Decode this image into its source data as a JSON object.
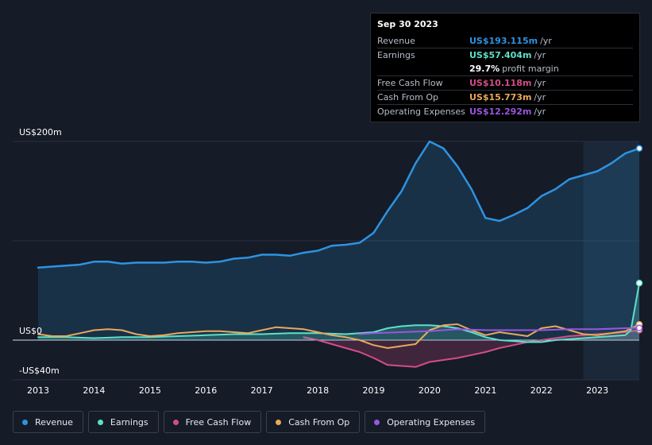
{
  "chart_data": {
    "type": "area",
    "currency_note": "US$ millions",
    "ylim": [
      -40,
      200
    ],
    "y_tick_labels": [
      "US$200m",
      "US$0",
      "-US$40m"
    ],
    "x_tick_labels": [
      "2013",
      "2014",
      "2015",
      "2016",
      "2017",
      "2018",
      "2019",
      "2020",
      "2021",
      "2022",
      "2023"
    ],
    "x_range": [
      2013,
      2023.75
    ],
    "forecast_shade_start": 2022.75,
    "series": [
      {
        "name": "Revenue",
        "color": "#2e93e0",
        "fill": true,
        "x": [
          2013.0,
          2013.5,
          2013.75,
          2014.0,
          2014.25,
          2014.5,
          2014.75,
          2015.0,
          2015.25,
          2015.5,
          2015.75,
          2016.0,
          2016.25,
          2016.5,
          2016.75,
          2017.0,
          2017.25,
          2017.5,
          2017.75,
          2018.0,
          2018.25,
          2018.5,
          2018.75,
          2019.0,
          2019.25,
          2019.5,
          2019.75,
          2020.0,
          2020.25,
          2020.5,
          2020.75,
          2021.0,
          2021.25,
          2021.5,
          2021.75,
          2022.0,
          2022.25,
          2022.5,
          2022.75,
          2023.0,
          2023.25,
          2023.5,
          2023.75
        ],
        "values": [
          73,
          75,
          76,
          79,
          79,
          77,
          78,
          78,
          78,
          79,
          79,
          78,
          79,
          82,
          83,
          86,
          86,
          85,
          88,
          90,
          95,
          96,
          98,
          108,
          130,
          150,
          178,
          200,
          193,
          175,
          152,
          123,
          120,
          126,
          133,
          145,
          152,
          162,
          166,
          170,
          178,
          188,
          193
        ]
      },
      {
        "name": "Earnings",
        "color": "#5de0c9",
        "fill": true,
        "x": [
          2013.0,
          2013.5,
          2014.0,
          2014.5,
          2015.0,
          2015.5,
          2016.0,
          2016.5,
          2017.0,
          2017.5,
          2018.0,
          2018.5,
          2019.0,
          2019.25,
          2019.5,
          2019.75,
          2020.0,
          2020.25,
          2020.5,
          2020.75,
          2021.0,
          2021.25,
          2021.5,
          2021.75,
          2022.0,
          2022.25,
          2022.5,
          2022.75,
          2023.0,
          2023.25,
          2023.5,
          2023.6,
          2023.75
        ],
        "values": [
          3,
          3,
          2,
          3,
          3,
          4,
          5,
          6,
          6,
          7,
          7,
          6,
          8,
          12,
          14,
          15,
          15,
          14,
          12,
          8,
          3,
          0,
          -1,
          -2,
          -2,
          0,
          1,
          2,
          3,
          4,
          5,
          10,
          57.4
        ]
      },
      {
        "name": "Free Cash Flow",
        "color": "#d44d87",
        "fill": true,
        "x": [
          2017.75,
          2018.0,
          2018.25,
          2018.5,
          2018.75,
          2019.0,
          2019.25,
          2019.5,
          2019.75,
          2020.0,
          2020.25,
          2020.5,
          2020.75,
          2021.0,
          2021.25,
          2021.5,
          2021.75,
          2022.0,
          2022.25,
          2022.5,
          2022.75,
          2023.0,
          2023.25,
          2023.5,
          2023.75
        ],
        "values": [
          3,
          0,
          -4,
          -8,
          -12,
          -18,
          -25,
          -26,
          -27,
          -22,
          -20,
          -18,
          -15,
          -12,
          -8,
          -5,
          -2,
          0,
          2,
          4,
          5,
          6,
          7,
          8,
          10.1
        ]
      },
      {
        "name": "Cash From Op",
        "color": "#e8a95b",
        "fill": false,
        "x": [
          2013.0,
          2013.25,
          2013.5,
          2013.75,
          2014.0,
          2014.25,
          2014.5,
          2014.75,
          2015.0,
          2015.25,
          2015.5,
          2015.75,
          2016.0,
          2016.25,
          2016.5,
          2016.75,
          2017.0,
          2017.25,
          2017.5,
          2017.75,
          2018.0,
          2018.25,
          2018.5,
          2018.75,
          2019.0,
          2019.25,
          2019.5,
          2019.75,
          2020.0,
          2020.25,
          2020.5,
          2020.75,
          2021.0,
          2021.25,
          2021.5,
          2021.75,
          2022.0,
          2022.25,
          2022.5,
          2022.75,
          2023.0,
          2023.25,
          2023.5,
          2023.75
        ],
        "values": [
          6,
          4,
          4,
          7,
          10,
          11,
          10,
          6,
          4,
          5,
          7,
          8,
          9,
          9,
          8,
          7,
          10,
          13,
          12,
          11,
          8,
          5,
          3,
          0,
          -5,
          -8,
          -6,
          -4,
          10,
          15,
          16,
          10,
          5,
          8,
          6,
          4,
          12,
          14,
          10,
          6,
          5,
          7,
          9,
          15.8
        ]
      },
      {
        "name": "Operating Expenses",
        "color": "#9b55e0",
        "fill": false,
        "x": [
          2018.75,
          2019.0,
          2019.5,
          2020.0,
          2020.5,
          2021.0,
          2021.5,
          2022.0,
          2022.5,
          2023.0,
          2023.5,
          2023.75
        ],
        "values": [
          6,
          7,
          8,
          9,
          11,
          10,
          10,
          10,
          11,
          11,
          12,
          12.3
        ]
      }
    ]
  },
  "tooltip": {
    "date": "Sep 30 2023",
    "rows": [
      {
        "label": "Revenue",
        "value": "US$193.115m",
        "unit": "/yr",
        "color": "#2e93e0"
      },
      {
        "label": "Earnings",
        "value": "US$57.404m",
        "unit": "/yr",
        "color": "#5de0c9"
      },
      {
        "label": "",
        "value": "29.7%",
        "unit": "profit margin",
        "color": "#ffffff"
      },
      {
        "label": "Free Cash Flow",
        "value": "US$10.118m",
        "unit": "/yr",
        "color": "#d44d87"
      },
      {
        "label": "Cash From Op",
        "value": "US$15.773m",
        "unit": "/yr",
        "color": "#e8a95b"
      },
      {
        "label": "Operating Expenses",
        "value": "US$12.292m",
        "unit": "/yr",
        "color": "#9b55e0"
      }
    ]
  },
  "legend": [
    {
      "label": "Revenue",
      "color": "#2e93e0"
    },
    {
      "label": "Earnings",
      "color": "#5de0c9"
    },
    {
      "label": "Free Cash Flow",
      "color": "#d44d87"
    },
    {
      "label": "Cash From Op",
      "color": "#e8a95b"
    },
    {
      "label": "Operating Expenses",
      "color": "#9b55e0"
    }
  ]
}
